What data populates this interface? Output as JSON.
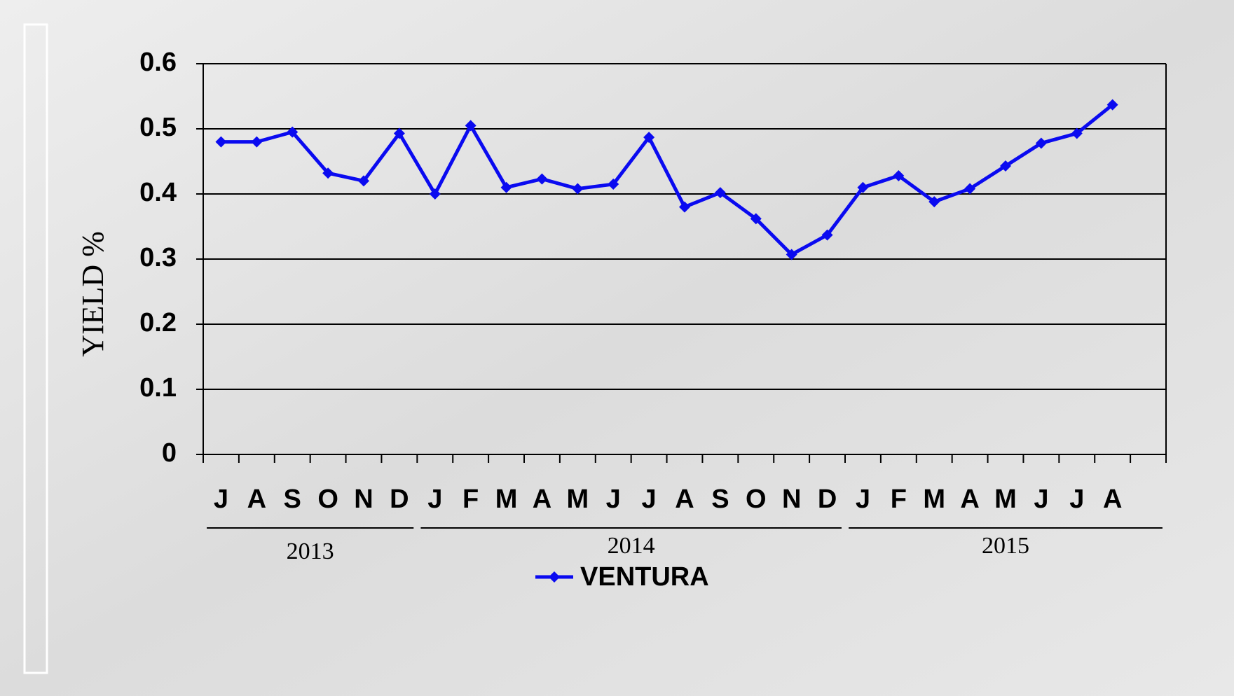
{
  "chart_data": {
    "type": "line",
    "y_label": "YIELD %",
    "categories": [
      "J",
      "A",
      "S",
      "O",
      "N",
      "D",
      "J",
      "F",
      "M",
      "A",
      "M",
      "J",
      "J",
      "A",
      "S",
      "O",
      "N",
      "D",
      "J",
      "F",
      "M",
      "A",
      "M",
      "J",
      "J",
      "A",
      null
    ],
    "year_labels": [
      "2013",
      "2014",
      "2015"
    ],
    "series": [
      {
        "name": "VENTURA",
        "color": "#0a0af0",
        "values": [
          0.48,
          0.48,
          0.495,
          0.432,
          0.42,
          0.493,
          0.4,
          0.505,
          0.41,
          0.423,
          0.408,
          0.415,
          0.487,
          0.38,
          0.402,
          0.362,
          0.307,
          0.337,
          0.41,
          0.428,
          0.388,
          0.408,
          0.443,
          0.478,
          0.493,
          0.537,
          null
        ]
      }
    ],
    "ylim": [
      0,
      0.6
    ],
    "yticks": [
      0,
      0.1,
      0.2,
      0.3,
      0.4,
      0.5,
      0.6
    ],
    "grid": true,
    "legend": "bottom"
  }
}
